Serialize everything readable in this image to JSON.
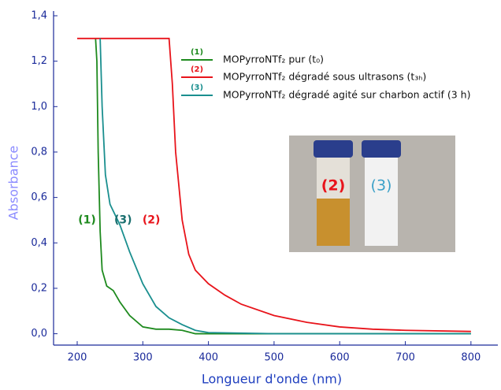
{
  "chart_data": {
    "type": "line",
    "x_label": "Longueur d'onde (nm)",
    "y_label": "Absorbance",
    "xlim": [
      164,
      841
    ],
    "ylim": [
      -0.05,
      1.4
    ],
    "xticks": [
      200,
      300,
      400,
      500,
      600,
      700,
      800
    ],
    "yticks": [
      {
        "value": 0,
        "label": "0,0"
      },
      {
        "value": 0.2,
        "label": "0,2"
      },
      {
        "value": 0.4,
        "label": "0,4"
      },
      {
        "value": 0.6,
        "label": "0,6"
      },
      {
        "value": 0.8,
        "label": "0,8"
      },
      {
        "value": 1.0,
        "label": "1,0"
      },
      {
        "value": 1.2,
        "label": "1,2"
      },
      {
        "value": 1.4,
        "label": "1,4"
      }
    ],
    "series": [
      {
        "name": "MOPyrroNTf₂ pur (t₀)",
        "label": "(1)",
        "color": "#1e8a1e",
        "x": [
          228,
          230,
          232,
          235,
          238,
          245,
          255,
          265,
          280,
          300,
          320,
          340,
          360,
          380,
          400,
          500,
          600,
          700,
          800
        ],
        "values": [
          1.3,
          1.2,
          0.8,
          0.45,
          0.28,
          0.21,
          0.19,
          0.14,
          0.08,
          0.03,
          0.02,
          0.02,
          0.015,
          0.0,
          0.0,
          0.0,
          0.0,
          0.0,
          0.0
        ]
      },
      {
        "name": "MOPyrroNTf₂ dégradé sous ultrasons (t₃ₕ)",
        "label": "(2)",
        "color": "#e8141b",
        "x": [
          200,
          340,
          345,
          350,
          360,
          370,
          380,
          400,
          425,
          450,
          500,
          550,
          600,
          650,
          700,
          800
        ],
        "values": [
          1.3,
          1.3,
          1.1,
          0.8,
          0.5,
          0.35,
          0.28,
          0.22,
          0.17,
          0.13,
          0.08,
          0.05,
          0.03,
          0.02,
          0.015,
          0.01
        ]
      },
      {
        "name": "MOPyrroNTf₂ dégradé agité sur charbon actif (3 h)",
        "label": "(3)",
        "color": "#1a8f8f",
        "x": [
          235,
          238,
          243,
          250,
          265,
          280,
          300,
          320,
          340,
          360,
          380,
          400,
          500,
          600,
          700,
          800
        ],
        "values": [
          1.3,
          1.0,
          0.7,
          0.57,
          0.48,
          0.36,
          0.22,
          0.12,
          0.07,
          0.04,
          0.015,
          0.005,
          0.0,
          0.0,
          0.0,
          0.0
        ]
      }
    ],
    "annotations": [
      {
        "text": "(1)",
        "x": 215,
        "y": 0.57,
        "color": "#1e8a1e"
      },
      {
        "text": "(3)",
        "x": 270,
        "y": 0.57,
        "color": "#1a6f6f"
      },
      {
        "text": "(2)",
        "x": 313,
        "y": 0.57,
        "color": "#e8141b"
      }
    ],
    "photo_labels": [
      {
        "text": "(2)",
        "color": "#e8141b"
      },
      {
        "text": "(3)",
        "color": "#3aa0c8"
      }
    ]
  }
}
